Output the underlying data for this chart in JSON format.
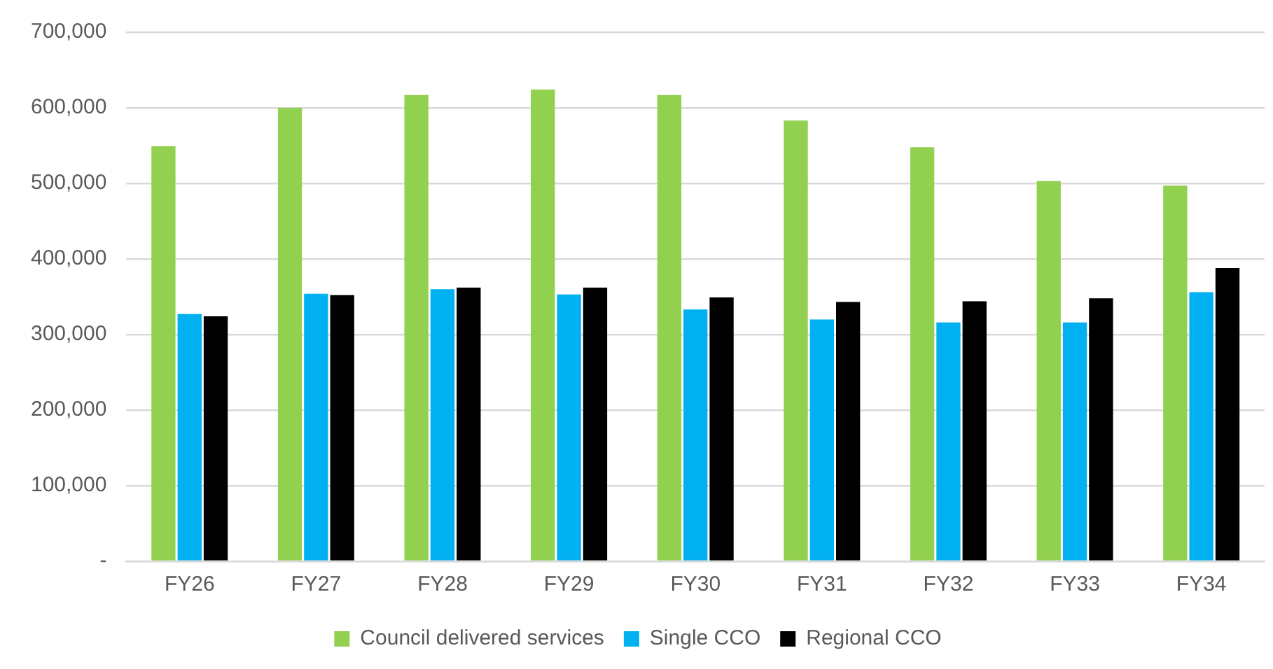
{
  "chart_data": {
    "type": "bar",
    "categories": [
      "FY26",
      "FY27",
      "FY28",
      "FY29",
      "FY30",
      "FY31",
      "FY32",
      "FY33",
      "FY34"
    ],
    "series": [
      {
        "name": "Council delivered services",
        "color": "#92d050",
        "values": [
          549000,
          600000,
          617000,
          624000,
          617000,
          583000,
          548000,
          503000,
          497000
        ]
      },
      {
        "name": "Single CCO",
        "color": "#00b0f0",
        "values": [
          327000,
          354000,
          360000,
          353000,
          333000,
          320000,
          316000,
          316000,
          356000
        ]
      },
      {
        "name": "Regional CCO",
        "color": "#000000",
        "values": [
          324000,
          352000,
          362000,
          362000,
          349000,
          343000,
          344000,
          348000,
          388000
        ]
      }
    ],
    "ylim": [
      0,
      700000
    ],
    "yticks": [
      {
        "value": 0,
        "label": "-"
      },
      {
        "value": 100000,
        "label": "100,000"
      },
      {
        "value": 200000,
        "label": "200,000"
      },
      {
        "value": 300000,
        "label": "300,000"
      },
      {
        "value": 400000,
        "label": "400,000"
      },
      {
        "value": 500000,
        "label": "500,000"
      },
      {
        "value": 600000,
        "label": "600,000"
      },
      {
        "value": 700000,
        "label": "700,000"
      }
    ],
    "grid": "y",
    "legend": "bottom"
  }
}
